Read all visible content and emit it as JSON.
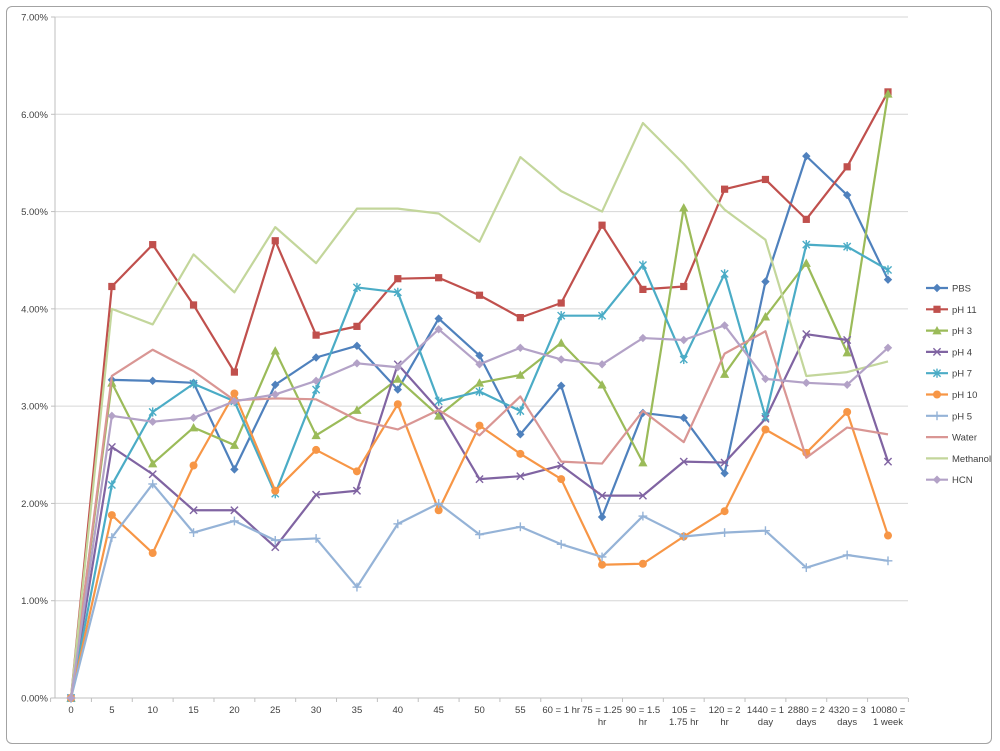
{
  "chart_data": {
    "type": "line",
    "categories": [
      "0",
      "5",
      "10",
      "15",
      "20",
      "25",
      "30",
      "35",
      "40",
      "45",
      "50",
      "55",
      "60 = 1 hr",
      "75 = 1.25 hr",
      "90 = 1.5 hr",
      "105 = 1.75 hr",
      "120 = 2 hr",
      "1440 = 1 day",
      "2880 = 2 days",
      "4320 = 3 days",
      "10080 = 1 week"
    ],
    "x_tick_label_lines": [
      [
        "0"
      ],
      [
        "5"
      ],
      [
        "10"
      ],
      [
        "15"
      ],
      [
        "20"
      ],
      [
        "25"
      ],
      [
        "30"
      ],
      [
        "35"
      ],
      [
        "40"
      ],
      [
        "45"
      ],
      [
        "50"
      ],
      [
        "55"
      ],
      [
        "60 = 1 hr"
      ],
      [
        "75 = 1.25",
        "hr"
      ],
      [
        "90 = 1.5",
        "hr"
      ],
      [
        "105 =",
        "1.75 hr"
      ],
      [
        "120 = 2",
        "hr"
      ],
      [
        "1440 = 1",
        "day"
      ],
      [
        "2880 = 2",
        "days"
      ],
      [
        "4320 = 3",
        "days"
      ],
      [
        "10080 =",
        "1 week"
      ]
    ],
    "y_tick_labels": [
      "0.00%",
      "1.00%",
      "2.00%",
      "3.00%",
      "4.00%",
      "5.00%",
      "6.00%",
      "7.00%"
    ],
    "ylim": [
      0,
      7
    ],
    "grid": true,
    "legend_position": "right",
    "series": [
      {
        "name": "PBS",
        "color": "#4F81BD",
        "marker": "diamond",
        "values": [
          0,
          3.27,
          3.26,
          3.24,
          2.35,
          3.22,
          3.5,
          3.62,
          3.17,
          3.9,
          3.52,
          2.71,
          3.21,
          1.86,
          2.93,
          2.88,
          2.31,
          4.28,
          5.57,
          5.17,
          4.3
        ]
      },
      {
        "name": "pH 11",
        "color": "#C0504D",
        "marker": "square",
        "values": [
          0,
          4.23,
          4.66,
          4.04,
          3.35,
          4.7,
          3.73,
          3.82,
          4.31,
          4.32,
          4.14,
          3.91,
          4.06,
          4.86,
          4.2,
          4.23,
          5.23,
          5.33,
          4.92,
          5.46,
          6.23
        ]
      },
      {
        "name": "pH 3",
        "color": "#9BBB59",
        "marker": "triangle",
        "values": [
          0,
          3.24,
          2.41,
          2.78,
          2.6,
          3.57,
          2.7,
          2.96,
          3.28,
          2.9,
          3.24,
          3.32,
          3.65,
          3.22,
          2.42,
          5.04,
          3.33,
          3.92,
          4.47,
          3.55,
          6.21
        ]
      },
      {
        "name": "pH 4",
        "color": "#8064A2",
        "marker": "x",
        "values": [
          0,
          2.58,
          2.3,
          1.93,
          1.93,
          1.55,
          2.09,
          2.13,
          3.43,
          2.96,
          2.25,
          2.28,
          2.39,
          2.08,
          2.08,
          2.43,
          2.42,
          2.87,
          3.74,
          3.68,
          2.43
        ]
      },
      {
        "name": "pH 7",
        "color": "#4BACC6",
        "marker": "asterisk",
        "values": [
          0,
          2.19,
          2.94,
          3.23,
          3.05,
          2.1,
          3.17,
          4.22,
          4.17,
          3.05,
          3.15,
          2.95,
          3.93,
          3.93,
          4.45,
          3.48,
          4.36,
          2.89,
          4.66,
          4.64,
          4.4
        ]
      },
      {
        "name": "pH 10",
        "color": "#F79646",
        "marker": "circle",
        "values": [
          0,
          1.88,
          1.49,
          2.39,
          3.13,
          2.13,
          2.55,
          2.33,
          3.02,
          1.93,
          2.8,
          2.51,
          2.25,
          1.37,
          1.38,
          1.66,
          1.92,
          2.76,
          2.52,
          2.94,
          1.67
        ]
      },
      {
        "name": "pH 5",
        "color": "#95B3D7",
        "marker": "plus",
        "values": [
          0,
          1.65,
          2.2,
          1.7,
          1.82,
          1.62,
          1.64,
          1.14,
          1.79,
          2.0,
          1.68,
          1.76,
          1.58,
          1.45,
          1.87,
          1.66,
          1.7,
          1.72,
          1.34,
          1.47,
          1.41
        ]
      },
      {
        "name": "Water",
        "color": "#D99694",
        "marker": "none",
        "values": [
          0,
          3.31,
          3.58,
          3.36,
          3.06,
          3.08,
          3.07,
          2.86,
          2.76,
          2.96,
          2.7,
          3.1,
          2.43,
          2.41,
          2.95,
          2.63,
          3.54,
          3.77,
          2.47,
          2.78,
          2.71
        ]
      },
      {
        "name": "Methanol",
        "color": "#C3D69B",
        "marker": "none",
        "values": [
          0,
          4.0,
          3.84,
          4.56,
          4.17,
          4.84,
          4.47,
          5.03,
          5.03,
          4.98,
          4.69,
          5.56,
          5.21,
          5.0,
          5.91,
          5.49,
          5.02,
          4.71,
          3.31,
          3.35,
          3.46
        ]
      },
      {
        "name": "HCN",
        "color": "#B3A2C7",
        "marker": "diamond",
        "values": [
          0,
          2.9,
          2.84,
          2.88,
          3.05,
          3.12,
          3.26,
          3.44,
          3.4,
          3.79,
          3.43,
          3.6,
          3.48,
          3.43,
          3.7,
          3.68,
          3.83,
          3.28,
          3.24,
          3.22,
          3.6
        ]
      }
    ],
    "colors": {
      "gridline": "#D6D6D6",
      "axis": "#BFBFBF",
      "tick_text": "#3F3F3F",
      "frame_border": "#A3A3A3",
      "background": "#FFFFFF"
    }
  }
}
